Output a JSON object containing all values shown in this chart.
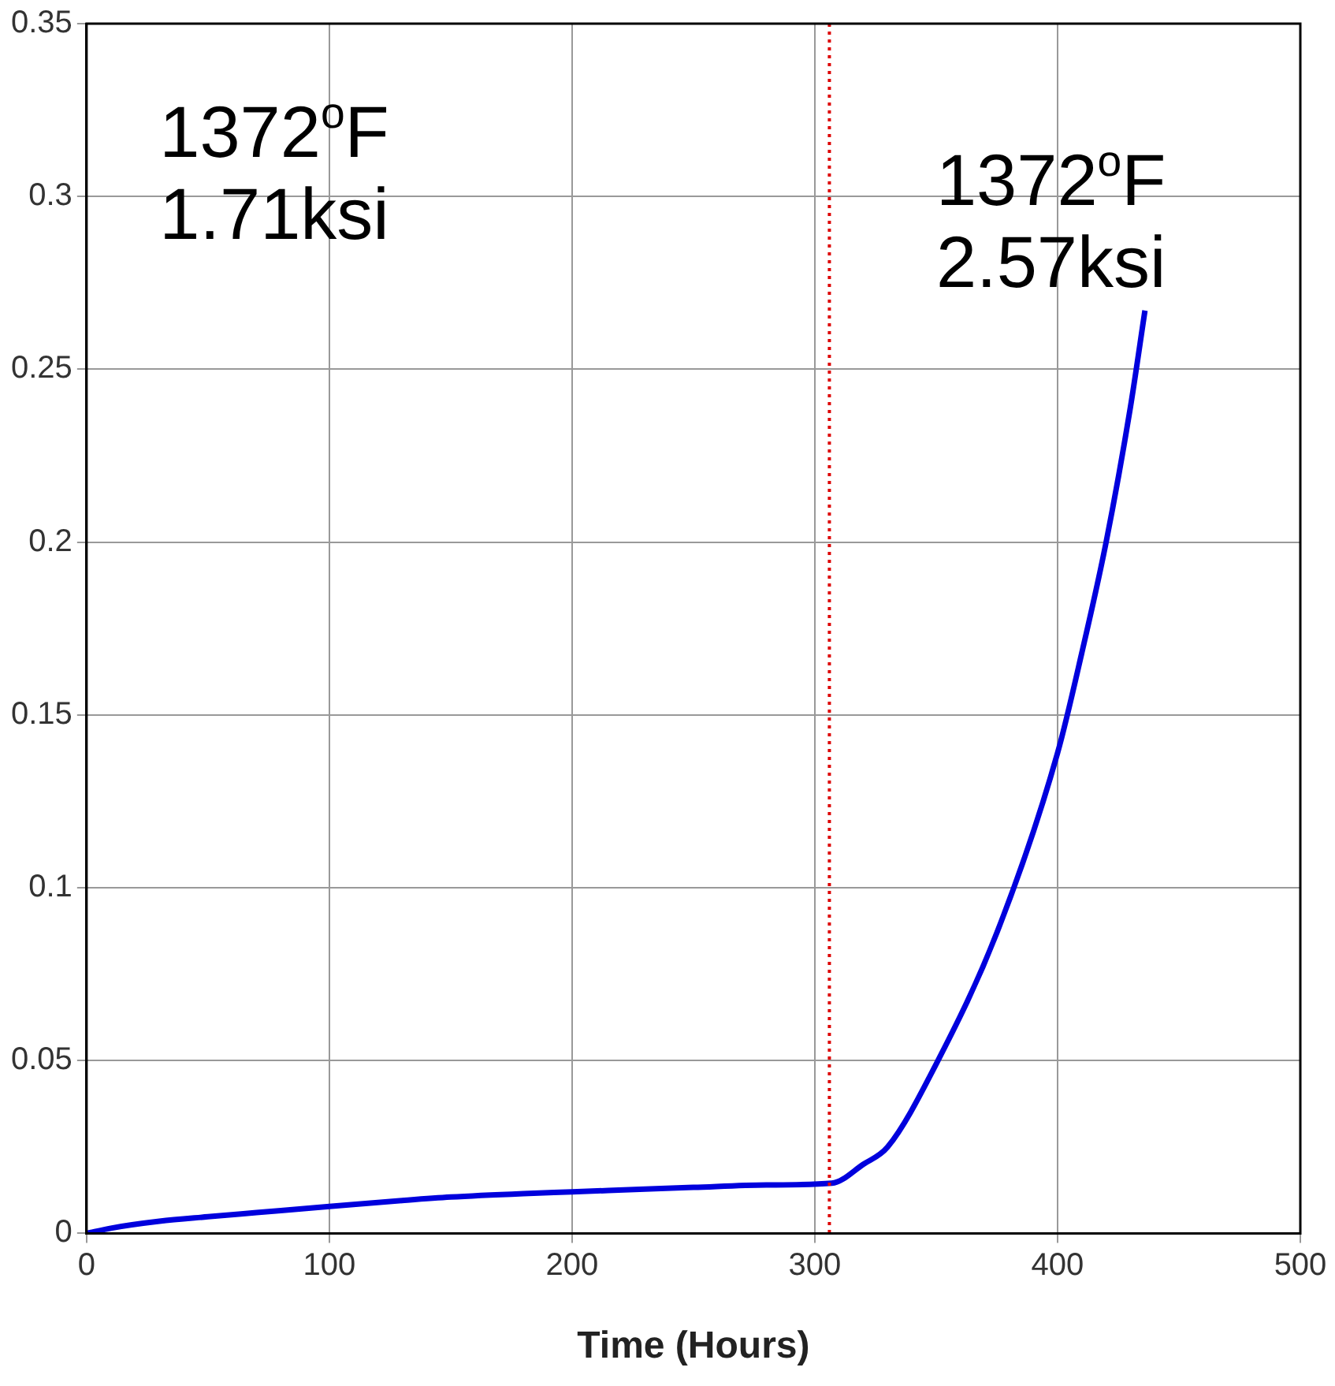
{
  "chart_data": {
    "type": "line",
    "xlabel": "Time (Hours)",
    "series": [
      {
        "color": "#0000dd",
        "x": [
          0,
          10,
          30,
          50,
          70,
          100,
          130,
          150,
          180,
          200,
          230,
          250,
          280,
          307,
          320,
          330,
          350,
          375,
          400,
          410,
          420,
          430,
          436
        ],
        "values": [
          0,
          0.0015,
          0.0035,
          0.0048,
          0.006,
          0.0078,
          0.0095,
          0.0105,
          0.0115,
          0.012,
          0.0128,
          0.0133,
          0.014,
          0.0145,
          0.02,
          0.025,
          0.049,
          0.087,
          0.139,
          0.168,
          0.2,
          0.239,
          0.267
        ]
      }
    ],
    "xlim": [
      0,
      500
    ],
    "xticks": [
      0,
      100,
      200,
      300,
      400,
      500
    ],
    "ylim": [
      0,
      0.35
    ],
    "yticks": [
      0,
      0.05,
      0.1,
      0.15,
      0.2,
      0.25,
      0.3,
      0.35
    ],
    "grid": true,
    "legend": false,
    "marker": "none",
    "line_style": "solid",
    "ref_lines": [
      {
        "axis": "x",
        "value": 306,
        "color": "#dd0000",
        "line_style": "dotted"
      }
    ],
    "annotations": [
      "1372$^{o}$F\n1.71ksi",
      "1372$^{o}$F\n2.57ksi"
    ]
  }
}
